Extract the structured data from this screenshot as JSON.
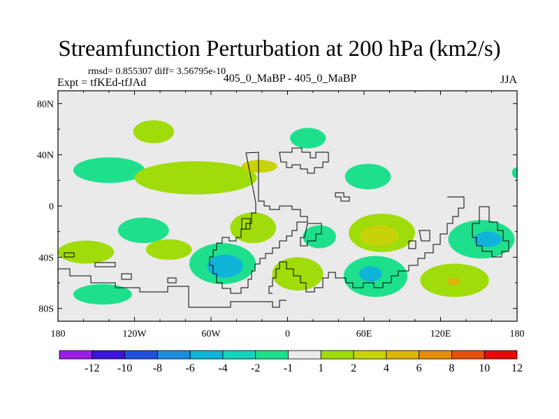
{
  "header": {
    "title": "Streamfunction Perturbation at 200 hPa (km2/s)",
    "stats": "rmsd= 0.855307 diff= 3.56795e-10",
    "experiment": "Expt = tfKEd-tfJAd",
    "comparison": "405_0_MaBP - 405_0_MaBP",
    "season": "JJA"
  },
  "chart_data": {
    "type": "heatmap",
    "projection": "cylindrical equidistant",
    "title": "Streamfunction Perturbation at 200 hPa (km2/s)",
    "xlim": [
      -180,
      180
    ],
    "ylim": [
      -90,
      90
    ],
    "x_ticks": [
      {
        "value": -180,
        "label": "180"
      },
      {
        "value": -120,
        "label": "120W"
      },
      {
        "value": -60,
        "label": "60W"
      },
      {
        "value": 0,
        "label": "0"
      },
      {
        "value": 60,
        "label": "60E"
      },
      {
        "value": 120,
        "label": "120E"
      },
      {
        "value": 180,
        "label": "180"
      }
    ],
    "y_ticks": [
      {
        "value": 80,
        "label": "80N"
      },
      {
        "value": 40,
        "label": "40N"
      },
      {
        "value": 0,
        "label": "0"
      },
      {
        "value": -40,
        "label": "40S"
      },
      {
        "value": -80,
        "label": "80S"
      }
    ],
    "colorbar": {
      "labels": [
        "-12",
        "-10",
        "-8",
        "-6",
        "-4",
        "-2",
        "-1",
        "1",
        "2",
        "4",
        "6",
        "8",
        "10",
        "12"
      ],
      "colors": [
        "#9a1ee8",
        "#3c14dc",
        "#1e50dc",
        "#1e8cdc",
        "#10b4d8",
        "#14d2bc",
        "#1ee08c",
        "#eaeaea",
        "#a0dc0a",
        "#c8d20a",
        "#dcb40a",
        "#e68c0a",
        "#e6500a",
        "#e60a0a"
      ]
    },
    "blobs": [
      {
        "lon": -105,
        "lat": 58,
        "rlon": 16,
        "rlat": 9,
        "color": "#a0dc0a"
      },
      {
        "lon": 16,
        "lat": 53,
        "rlon": 14,
        "rlat": 8,
        "color": "#1ee08c"
      },
      {
        "lon": -140,
        "lat": 28,
        "rlon": 28,
        "rlat": 10,
        "color": "#1ee08c"
      },
      {
        "lon": -72,
        "lat": 22,
        "rlon": 48,
        "rlat": 13,
        "color": "#a0dc0a"
      },
      {
        "lon": -22,
        "lat": 31,
        "rlon": 14,
        "rlat": 5,
        "color": "#c8d20a"
      },
      {
        "lon": 63,
        "lat": 23,
        "rlon": 18,
        "rlat": 10,
        "color": "#1ee08c"
      },
      {
        "lon": 179,
        "lat": 26,
        "rlon": 3,
        "rlat": 4,
        "color": "#1ee08c"
      },
      {
        "lon": -113,
        "lat": -19,
        "rlon": 20,
        "rlat": 10,
        "color": "#1ee08c"
      },
      {
        "lon": -27,
        "lat": -17,
        "rlon": 18,
        "rlat": 12,
        "color": "#a0dc0a"
      },
      {
        "lon": 25,
        "lat": -24,
        "rlon": 13,
        "rlat": 9,
        "color": "#1ee08c"
      },
      {
        "lon": 74,
        "lat": -21,
        "rlon": 26,
        "rlat": 15,
        "color": "#a0dc0a"
      },
      {
        "lon": 72,
        "lat": -23,
        "rlon": 15,
        "rlat": 8,
        "color": "#c8d20a"
      },
      {
        "lon": 152,
        "lat": -26,
        "rlon": 26,
        "rlat": 15,
        "color": "#1ee08c"
      },
      {
        "lon": 157,
        "lat": -26,
        "rlon": 11,
        "rlat": 6,
        "color": "#10b4d8"
      },
      {
        "lon": -158,
        "lat": -36,
        "rlon": 22,
        "rlat": 9,
        "color": "#a0dc0a"
      },
      {
        "lon": -93,
        "lat": -34,
        "rlon": 18,
        "rlat": 8,
        "color": "#a0dc0a"
      },
      {
        "lon": -51,
        "lat": -45,
        "rlon": 26,
        "rlat": 16,
        "color": "#1ee08c"
      },
      {
        "lon": -49,
        "lat": -47,
        "rlon": 14,
        "rlat": 9,
        "color": "#10b4d8"
      },
      {
        "lon": 8,
        "lat": -53,
        "rlon": 20,
        "rlat": 13,
        "color": "#a0dc0a"
      },
      {
        "lon": 69,
        "lat": -55,
        "rlon": 25,
        "rlat": 16,
        "color": "#1ee08c"
      },
      {
        "lon": 65,
        "lat": -53,
        "rlon": 9,
        "rlat": 6,
        "color": "#10b4d8"
      },
      {
        "lon": 131,
        "lat": -58,
        "rlon": 27,
        "rlat": 13,
        "color": "#a0dc0a"
      },
      {
        "lon": 130,
        "lat": -59,
        "rlon": 5,
        "rlat": 3,
        "color": "#dcb40a"
      },
      {
        "lon": -145,
        "lat": -69,
        "rlon": 23,
        "rlat": 8,
        "color": "#1ee08c"
      }
    ]
  }
}
